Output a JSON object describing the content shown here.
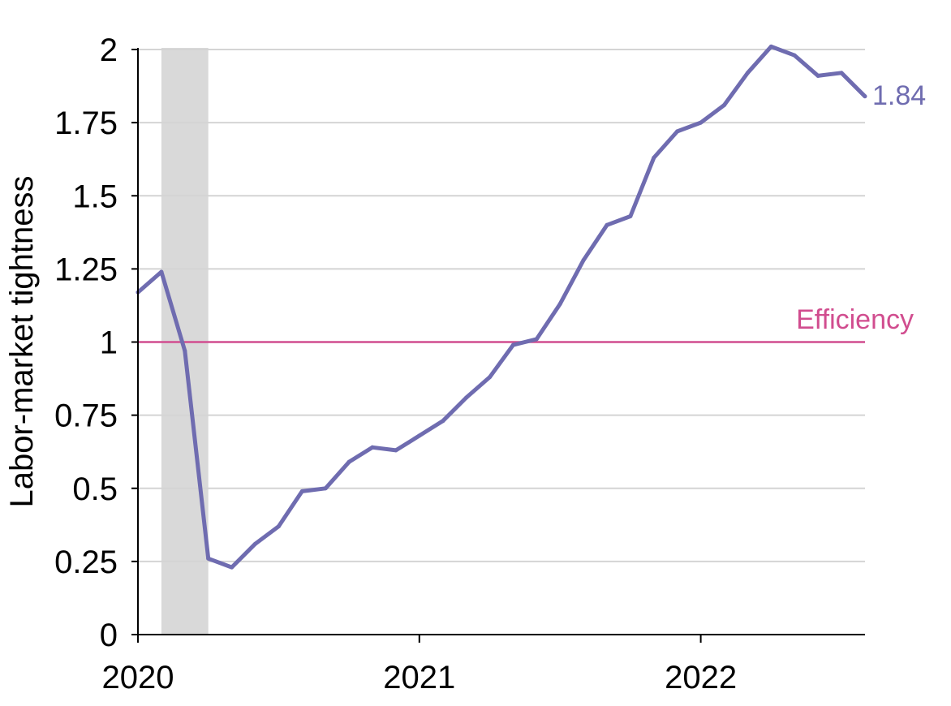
{
  "chart_data": {
    "type": "line",
    "title": "",
    "xlabel": "",
    "ylabel": "Labor-market tightness",
    "ylim": [
      0,
      2
    ],
    "xlim": [
      "2020-01",
      "2022-07"
    ],
    "y_ticks": [
      {
        "value": 0,
        "label": "0"
      },
      {
        "value": 0.25,
        "label": "0.25"
      },
      {
        "value": 0.5,
        "label": "0.5"
      },
      {
        "value": 0.75,
        "label": "0.75"
      },
      {
        "value": 1,
        "label": "1"
      },
      {
        "value": 1.25,
        "label": "1.25"
      },
      {
        "value": 1.5,
        "label": "1.5"
      },
      {
        "value": 1.75,
        "label": "1.75"
      },
      {
        "value": 2,
        "label": "2"
      }
    ],
    "x_ticks": [
      {
        "value": "2020-01",
        "label": "2020"
      },
      {
        "value": "2021-01",
        "label": "2021"
      },
      {
        "value": "2022-01",
        "label": "2022"
      }
    ],
    "grid": "horizontal",
    "shaded_period": {
      "start": "2020-02",
      "end": "2020-04"
    },
    "reference_line": {
      "value": 1,
      "label": "Efficiency",
      "color": "#d14d8f"
    },
    "series": [
      {
        "color": "#6f6cb0",
        "end_label": "1.84",
        "x": [
          "2020-01",
          "2020-02",
          "2020-03",
          "2020-04",
          "2020-05",
          "2020-06",
          "2020-07",
          "2020-08",
          "2020-09",
          "2020-10",
          "2020-11",
          "2020-12",
          "2021-01",
          "2021-02",
          "2021-03",
          "2021-04",
          "2021-05",
          "2021-06",
          "2021-07",
          "2021-08",
          "2021-09",
          "2021-10",
          "2021-11",
          "2021-12",
          "2022-01",
          "2022-02",
          "2022-03",
          "2022-04",
          "2022-05",
          "2022-06",
          "2022-07",
          "2022-08"
        ],
        "values": [
          1.17,
          1.24,
          0.97,
          0.26,
          0.23,
          0.31,
          0.37,
          0.49,
          0.5,
          0.59,
          0.64,
          0.63,
          0.68,
          0.73,
          0.81,
          0.88,
          0.99,
          1.01,
          1.13,
          1.28,
          1.4,
          1.43,
          1.63,
          1.72,
          1.75,
          1.81,
          1.92,
          2.01,
          1.98,
          1.91,
          1.92,
          1.84
        ]
      }
    ]
  },
  "colors": {
    "line": "#6f6cb0",
    "efficiency": "#d14d8f",
    "grid": "#d4d4d4",
    "shade": "#d9d9d9",
    "axis": "#000000"
  }
}
